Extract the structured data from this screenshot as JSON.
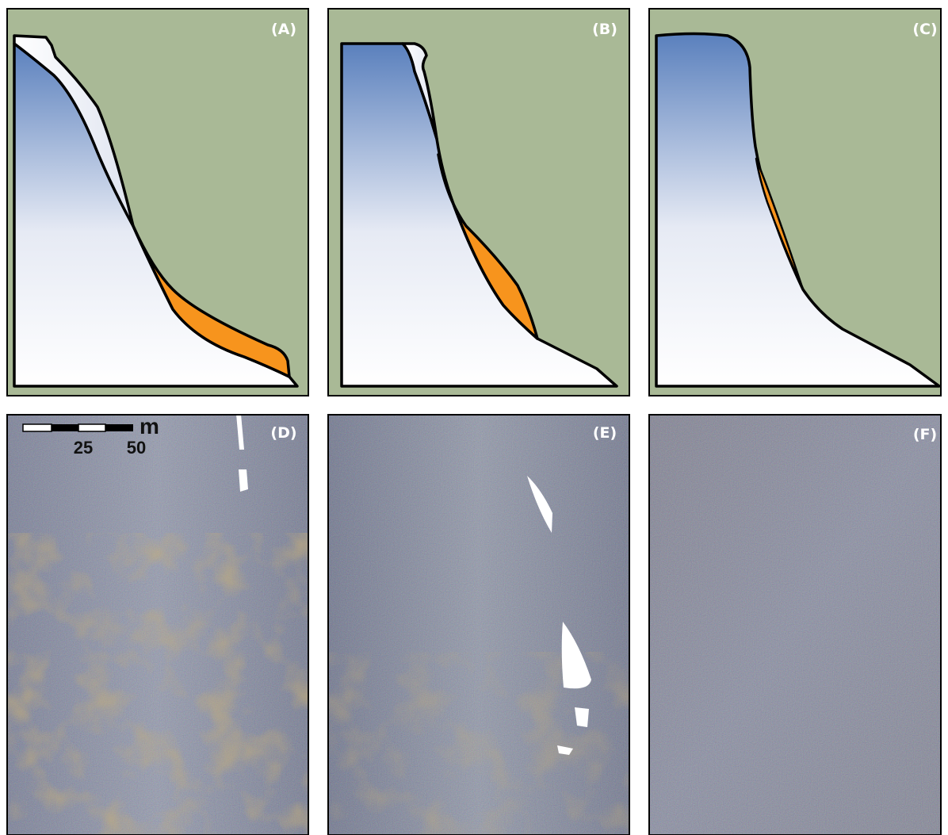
{
  "panels": [
    {
      "label": "(A)"
    },
    {
      "label": "(B)"
    },
    {
      "label": "(C)"
    },
    {
      "label": "(D)"
    },
    {
      "label": "(E)"
    },
    {
      "label": "(F)"
    }
  ],
  "scale_bar": {
    "unit": "m",
    "labels": [
      "25",
      "50"
    ]
  }
}
